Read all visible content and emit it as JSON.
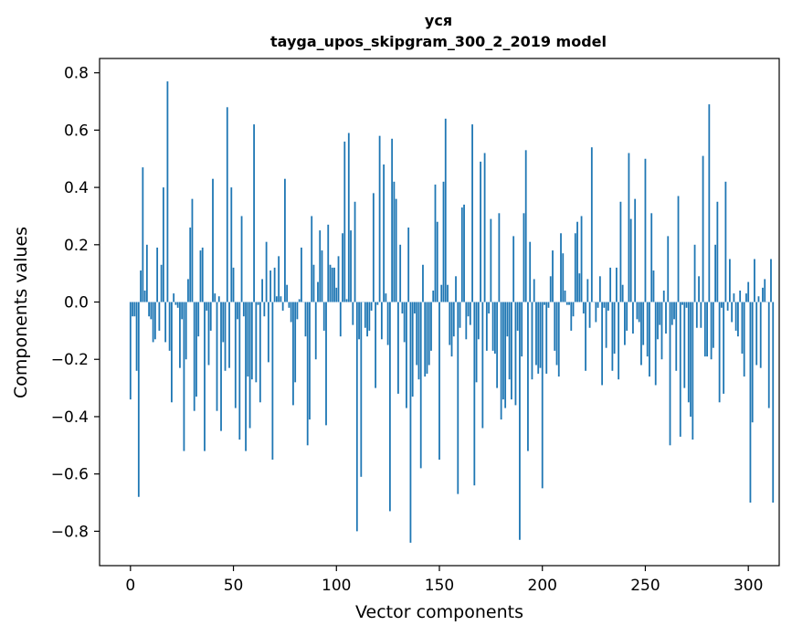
{
  "chart_data": {
    "type": "bar",
    "title": "уся",
    "subtitle": "tayga_upos_skipgram_300_2_2019 model",
    "xlabel": "Vector components",
    "ylabel": "Components values",
    "xlim": [
      -15,
      315
    ],
    "ylim": [
      -0.92,
      0.85
    ],
    "xticks": [
      0,
      50,
      100,
      150,
      200,
      250,
      300
    ],
    "yticks": [
      -0.8,
      -0.6,
      -0.4,
      -0.2,
      0.0,
      0.2,
      0.4,
      0.6,
      0.8
    ],
    "ytick_labels": [
      "−0.8",
      "−0.6",
      "−0.4",
      "−0.2",
      "0.0",
      "0.2",
      "0.4",
      "0.6",
      "0.8"
    ],
    "grid": false,
    "bar_color": "#1f77b4",
    "series": [
      {
        "values": [
          -0.34,
          -0.05,
          -0.05,
          -0.24,
          -0.68,
          0.11,
          0.47,
          0.04,
          0.2,
          -0.05,
          -0.06,
          -0.14,
          -0.13,
          0.19,
          -0.1,
          0.13,
          0.4,
          -0.14,
          0.77,
          -0.17,
          -0.35,
          0.03,
          -0.01,
          -0.02,
          -0.23,
          -0.06,
          -0.52,
          -0.2,
          0.08,
          0.26,
          0.36,
          -0.38,
          -0.33,
          -0.12,
          0.18,
          0.19,
          -0.52,
          -0.03,
          -0.22,
          -0.1,
          0.43,
          0.03,
          -0.38,
          0.02,
          -0.45,
          -0.14,
          -0.24,
          0.68,
          -0.23,
          0.4,
          0.12,
          -0.37,
          -0.06,
          -0.48,
          0.3,
          -0.05,
          -0.52,
          -0.26,
          -0.44,
          -0.27,
          0.62,
          -0.28,
          -0.01,
          -0.35,
          0.08,
          -0.05,
          0.21,
          -0.21,
          0.11,
          -0.55,
          0.12,
          0.02,
          0.16,
          0.02,
          -0.03,
          0.43,
          0.06,
          -0.02,
          -0.07,
          -0.36,
          -0.28,
          -0.06,
          0.01,
          0.19,
          0.0,
          -0.12,
          -0.5,
          -0.41,
          0.3,
          0.13,
          -0.2,
          0.07,
          0.25,
          0.18,
          -0.1,
          -0.43,
          0.27,
          0.13,
          0.12,
          0.12,
          0.05,
          0.16,
          -0.12,
          0.24,
          0.56,
          0.01,
          0.59,
          0.25,
          -0.08,
          0.35,
          -0.8,
          -0.13,
          -0.61,
          0.0,
          -0.09,
          -0.12,
          -0.1,
          -0.03,
          0.38,
          -0.3,
          -0.01,
          0.58,
          -0.13,
          0.48,
          0.03,
          -0.15,
          -0.73,
          0.57,
          0.42,
          0.36,
          -0.32,
          0.2,
          -0.04,
          -0.14,
          -0.37,
          0.26,
          -0.84,
          -0.33,
          -0.04,
          -0.22,
          -0.27,
          -0.58,
          0.13,
          -0.26,
          -0.25,
          -0.22,
          -0.17,
          0.04,
          0.41,
          0.28,
          -0.55,
          0.06,
          0.42,
          0.64,
          0.06,
          -0.15,
          -0.19,
          -0.12,
          0.09,
          -0.67,
          -0.09,
          0.33,
          0.34,
          -0.13,
          -0.05,
          -0.08,
          0.62,
          -0.64,
          -0.28,
          -0.13,
          0.49,
          -0.44,
          0.52,
          -0.17,
          -0.04,
          0.29,
          -0.17,
          -0.18,
          -0.3,
          0.31,
          -0.41,
          -0.34,
          -0.37,
          -0.12,
          -0.27,
          -0.34,
          0.23,
          -0.36,
          -0.1,
          -0.83,
          -0.19,
          0.31,
          0.53,
          -0.52,
          0.21,
          -0.27,
          0.08,
          -0.22,
          -0.25,
          -0.23,
          -0.65,
          -0.01,
          -0.25,
          -0.02,
          0.09,
          0.18,
          -0.17,
          -0.22,
          -0.26,
          0.24,
          0.17,
          0.04,
          -0.01,
          -0.01,
          -0.1,
          -0.05,
          0.24,
          0.28,
          0.1,
          0.3,
          -0.04,
          -0.24,
          0.08,
          -0.09,
          0.54,
          0.0,
          -0.07,
          -0.02,
          0.09,
          -0.29,
          -0.02,
          -0.16,
          -0.03,
          0.12,
          -0.24,
          -0.18,
          0.12,
          -0.27,
          0.35,
          0.06,
          -0.15,
          -0.1,
          0.52,
          0.29,
          -0.11,
          0.36,
          -0.06,
          -0.07,
          -0.22,
          -0.15,
          0.5,
          -0.19,
          -0.26,
          0.31,
          0.11,
          -0.29,
          -0.13,
          -0.08,
          -0.2,
          0.04,
          -0.11,
          0.23,
          -0.5,
          -0.08,
          -0.06,
          -0.24,
          0.37,
          -0.47,
          -0.01,
          -0.3,
          -0.02,
          -0.35,
          -0.4,
          -0.48,
          0.2,
          -0.09,
          0.09,
          -0.09,
          0.51,
          -0.19,
          -0.19,
          0.69,
          -0.2,
          -0.16,
          0.2,
          0.35,
          -0.35,
          -0.02,
          -0.32,
          0.42,
          -0.03,
          0.15,
          -0.07,
          0.03,
          -0.1,
          -0.12,
          0.04,
          -0.18,
          -0.26,
          0.03,
          0.07,
          -0.7,
          -0.42,
          0.15,
          -0.22,
          0.02,
          -0.23,
          0.05,
          0.08,
          0.0,
          -0.37,
          0.15,
          -0.7
        ]
      }
    ]
  }
}
